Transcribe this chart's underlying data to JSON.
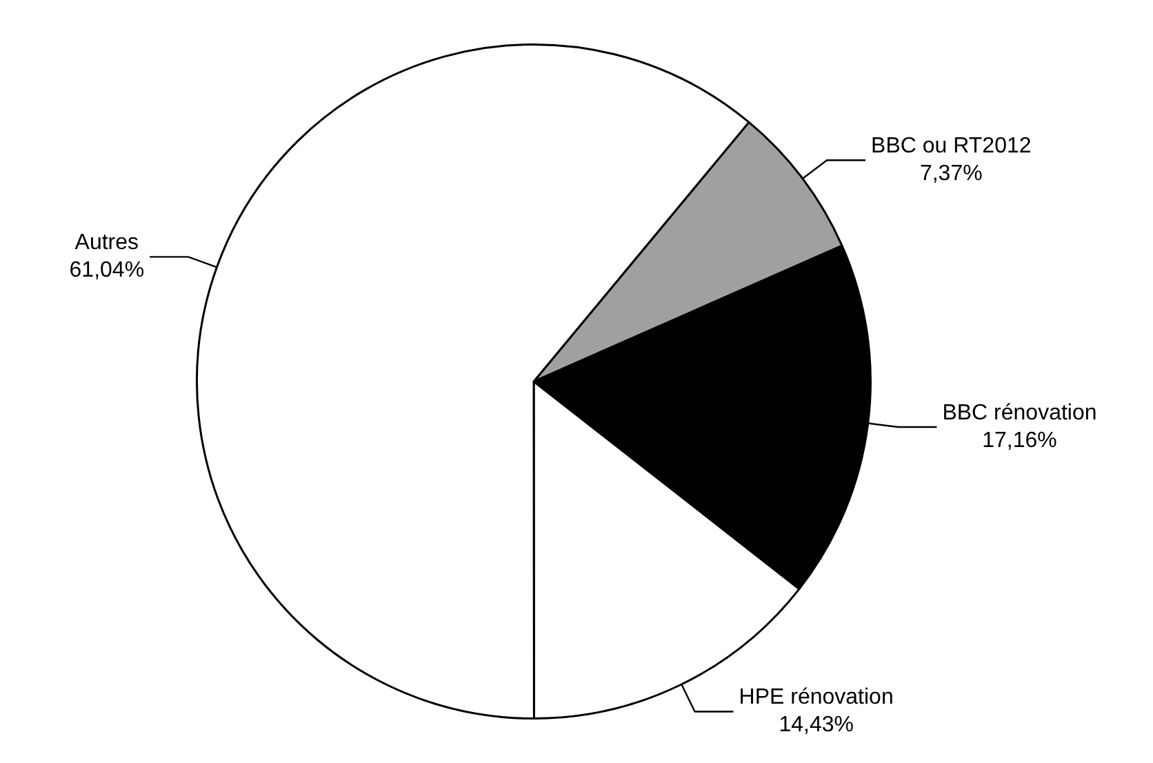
{
  "chart_data": {
    "type": "pie",
    "categories": [
      "BBC ou RT2012",
      "BBC rénovation",
      "HPE rénovation",
      "Autres"
    ],
    "values": [
      7.37,
      17.16,
      14.43,
      61.04
    ],
    "value_labels": [
      "7,37%",
      "17,16%",
      "14,43%",
      "61,04%"
    ],
    "colors": [
      "#a0a0a0",
      "#000000",
      "#ffffff",
      "#ffffff"
    ],
    "legend": false
  }
}
